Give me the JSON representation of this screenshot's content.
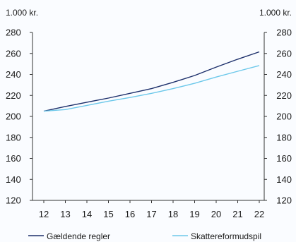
{
  "colors": {
    "series_1": "#1c2f6b",
    "series_2": "#6cc8ea",
    "axis": "#333333",
    "background": "#fafcff"
  },
  "chart_data": {
    "type": "line",
    "title": "",
    "left_unit": "1.000 kr.",
    "right_unit": "1.000 kr.",
    "x": [
      "12",
      "13",
      "14",
      "15",
      "16",
      "17",
      "18",
      "19",
      "20",
      "21",
      "22"
    ],
    "ylim": [
      120,
      280
    ],
    "yticks": [
      "120",
      "140",
      "160",
      "180",
      "200",
      "220",
      "240",
      "260",
      "280"
    ],
    "grid": false,
    "legend_position": "bottom",
    "series": [
      {
        "name": "Gældende regler",
        "values": [
          205,
          209.5,
          213.5,
          217.5,
          222,
          226.5,
          232.5,
          239,
          247,
          254.5,
          261.5
        ]
      },
      {
        "name": "Skattereformudspil",
        "values": [
          205,
          206.5,
          210.5,
          214.5,
          218,
          222,
          226.5,
          231.5,
          237.5,
          243,
          248.5
        ]
      }
    ]
  }
}
